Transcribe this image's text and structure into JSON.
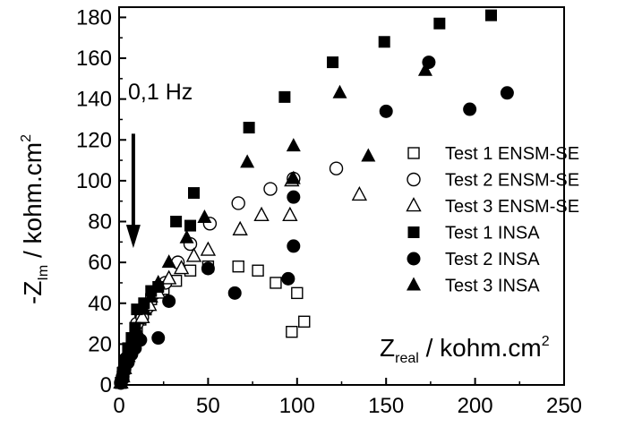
{
  "chart_data": {
    "type": "scatter",
    "title": "",
    "xlabel": {
      "main": "Z",
      "sub": "real",
      "unit": " / kohm.cm",
      "sup": "2"
    },
    "ylabel": {
      "main": "-Z",
      "sub": "Im",
      "unit": " / kohm.cm",
      "sup": "2"
    },
    "xlim": [
      0,
      250
    ],
    "ylim": [
      0,
      185
    ],
    "xticks": [
      0,
      50,
      100,
      150,
      200,
      250
    ],
    "yticks": [
      0,
      20,
      40,
      60,
      80,
      100,
      120,
      140,
      160,
      180
    ],
    "grid": false,
    "legend_position": "right",
    "annotation": {
      "text": "0,1 Hz",
      "arrow_from": [
        8,
        123
      ],
      "arrow_to": [
        8,
        67
      ]
    },
    "series": [
      {
        "name": "Test 1 ENSM-SE",
        "marker": "square",
        "filled": false,
        "points": [
          [
            1,
            1
          ],
          [
            2,
            4
          ],
          [
            3,
            8
          ],
          [
            4,
            12
          ],
          [
            6,
            17
          ],
          [
            8,
            22
          ],
          [
            10,
            27
          ],
          [
            12,
            32
          ],
          [
            15,
            37
          ],
          [
            18,
            42
          ],
          [
            25,
            47
          ],
          [
            32,
            51
          ],
          [
            40,
            56
          ],
          [
            50,
            58
          ],
          [
            67,
            58
          ],
          [
            78,
            56
          ],
          [
            88,
            50
          ],
          [
            97,
            26
          ],
          [
            100,
            45
          ],
          [
            104,
            31
          ]
        ]
      },
      {
        "name": "Test 2 ENSM-SE",
        "marker": "circle",
        "filled": false,
        "points": [
          [
            1,
            1
          ],
          [
            2,
            4
          ],
          [
            3,
            8
          ],
          [
            4,
            13
          ],
          [
            6,
            18
          ],
          [
            8,
            23
          ],
          [
            10,
            30
          ],
          [
            13,
            33
          ],
          [
            16,
            38
          ],
          [
            20,
            45
          ],
          [
            26,
            50
          ],
          [
            33,
            60
          ],
          [
            40,
            69
          ],
          [
            51,
            79
          ],
          [
            67,
            89
          ],
          [
            85,
            96
          ],
          [
            98,
            101
          ],
          [
            122,
            106
          ]
        ]
      },
      {
        "name": "Test 3 ENSM-SE",
        "marker": "triangle",
        "filled": false,
        "points": [
          [
            1,
            1
          ],
          [
            2,
            4
          ],
          [
            3,
            8
          ],
          [
            5,
            14
          ],
          [
            7,
            20
          ],
          [
            10,
            26
          ],
          [
            13,
            33
          ],
          [
            17,
            39
          ],
          [
            22,
            45
          ],
          [
            28,
            52
          ],
          [
            35,
            57
          ],
          [
            42,
            63
          ],
          [
            50,
            66
          ],
          [
            68,
            76
          ],
          [
            80,
            83
          ],
          [
            96,
            83
          ],
          [
            97,
            100
          ],
          [
            135,
            93
          ]
        ]
      },
      {
        "name": "Test 1 INSA",
        "marker": "square",
        "filled": true,
        "points": [
          [
            1,
            1
          ],
          [
            2,
            6
          ],
          [
            3,
            12
          ],
          [
            5,
            18
          ],
          [
            7,
            23
          ],
          [
            9,
            28
          ],
          [
            10,
            37
          ],
          [
            14,
            40
          ],
          [
            18,
            46
          ],
          [
            22,
            48
          ],
          [
            32,
            80
          ],
          [
            40,
            78
          ],
          [
            42,
            94
          ],
          [
            73,
            126
          ],
          [
            93,
            141
          ],
          [
            120,
            158
          ],
          [
            149,
            168
          ],
          [
            180,
            177
          ],
          [
            209,
            181
          ]
        ]
      },
      {
        "name": "Test 2 INSA",
        "marker": "circle",
        "filled": true,
        "points": [
          [
            1,
            1
          ],
          [
            2,
            3
          ],
          [
            3,
            7
          ],
          [
            5,
            11
          ],
          [
            7,
            15
          ],
          [
            9,
            18
          ],
          [
            12,
            22
          ],
          [
            22,
            23
          ],
          [
            28,
            41
          ],
          [
            50,
            57
          ],
          [
            65,
            45
          ],
          [
            95,
            52
          ],
          [
            98,
            68
          ],
          [
            98,
            92
          ],
          [
            150,
            134
          ],
          [
            174,
            158
          ],
          [
            197,
            135
          ],
          [
            218,
            143
          ]
        ]
      },
      {
        "name": "Test 3 INSA",
        "marker": "triangle",
        "filled": true,
        "points": [
          [
            1,
            1
          ],
          [
            2,
            5
          ],
          [
            3,
            10
          ],
          [
            5,
            17
          ],
          [
            7,
            22
          ],
          [
            10,
            27
          ],
          [
            14,
            37
          ],
          [
            18,
            43
          ],
          [
            22,
            50
          ],
          [
            28,
            60
          ],
          [
            38,
            72
          ],
          [
            48,
            82
          ],
          [
            72,
            109
          ],
          [
            98,
            101
          ],
          [
            98,
            117
          ],
          [
            124,
            143
          ],
          [
            140,
            112
          ],
          [
            172,
            154
          ]
        ]
      }
    ]
  }
}
